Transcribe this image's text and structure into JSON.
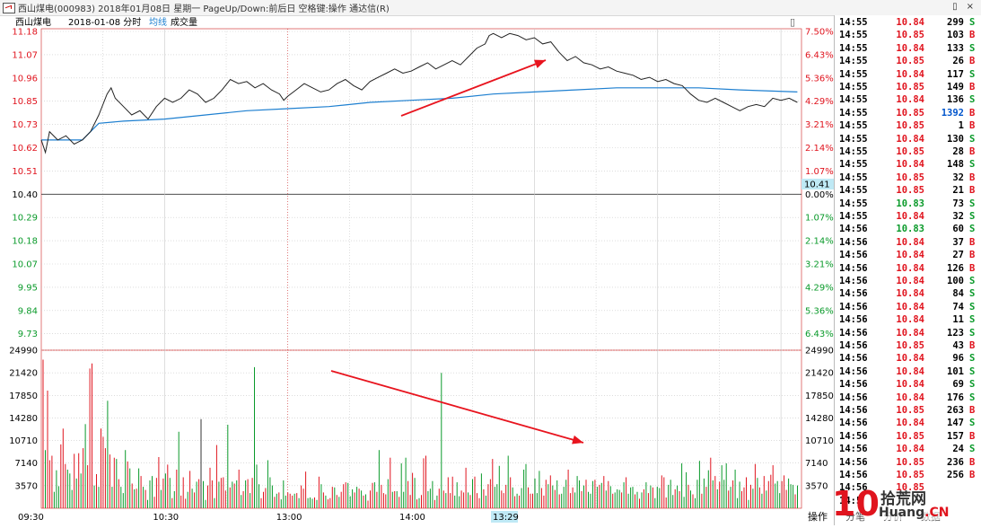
{
  "titlebar": {
    "text": "西山煤电(000983) 2018年01月08日 星期一 PageUp/Down:前后日 空格键:操作 通达信(R)",
    "restore": "▯",
    "close": "×"
  },
  "chart_header": {
    "name": "西山煤电",
    "date_mode": "2018-01-08 分时",
    "avg_label": "均线",
    "vol_label": "成交量",
    "corner_icon": "▯"
  },
  "price_axis": {
    "left_labels": [
      "11.18",
      "11.07",
      "10.96",
      "10.85",
      "10.73",
      "10.62",
      "10.51",
      "10.40",
      "10.29",
      "10.18",
      "10.07",
      "9.95",
      "9.84",
      "9.73"
    ],
    "right_labels": [
      "7.50%",
      "6.43%",
      "5.36%",
      "4.29%",
      "3.21%",
      "2.14%",
      "1.07%",
      "0.00%",
      "1.07%",
      "2.14%",
      "3.21%",
      "4.29%",
      "5.36%",
      "6.43%"
    ],
    "current_tag": "10.41"
  },
  "volume_axis": {
    "labels": [
      "24990",
      "21420",
      "17850",
      "14280",
      "10710",
      "7140",
      "3570"
    ]
  },
  "time_axis": {
    "labels": [
      "09:30",
      "10:30",
      "13:00",
      "14:00"
    ],
    "cursor_label": "13:29"
  },
  "chart_data": {
    "type": "line",
    "ylim": [
      9.62,
      11.18
    ],
    "base_price": 10.4,
    "price_series": [
      [
        0,
        10.66
      ],
      [
        2,
        10.6
      ],
      [
        4,
        10.7
      ],
      [
        8,
        10.66
      ],
      [
        12,
        10.68
      ],
      [
        16,
        10.64
      ],
      [
        20,
        10.66
      ],
      [
        24,
        10.7
      ],
      [
        28,
        10.78
      ],
      [
        32,
        10.88
      ],
      [
        34,
        10.91
      ],
      [
        36,
        10.86
      ],
      [
        40,
        10.82
      ],
      [
        44,
        10.78
      ],
      [
        48,
        10.8
      ],
      [
        52,
        10.76
      ],
      [
        56,
        10.82
      ],
      [
        60,
        10.86
      ],
      [
        64,
        10.84
      ],
      [
        68,
        10.86
      ],
      [
        72,
        10.9
      ],
      [
        76,
        10.88
      ],
      [
        80,
        10.84
      ],
      [
        84,
        10.86
      ],
      [
        88,
        10.9
      ],
      [
        92,
        10.95
      ],
      [
        96,
        10.93
      ],
      [
        100,
        10.94
      ],
      [
        104,
        10.91
      ],
      [
        108,
        10.93
      ],
      [
        112,
        10.9
      ],
      [
        116,
        10.88
      ],
      [
        118,
        10.85
      ],
      [
        120,
        10.87
      ],
      [
        124,
        10.9
      ],
      [
        128,
        10.93
      ],
      [
        132,
        10.91
      ],
      [
        136,
        10.89
      ],
      [
        140,
        10.9
      ],
      [
        144,
        10.93
      ],
      [
        148,
        10.95
      ],
      [
        152,
        10.92
      ],
      [
        156,
        10.9
      ],
      [
        160,
        10.94
      ],
      [
        164,
        10.96
      ],
      [
        168,
        10.98
      ],
      [
        172,
        11.0
      ],
      [
        176,
        10.98
      ],
      [
        180,
        10.99
      ],
      [
        184,
        11.01
      ],
      [
        188,
        11.03
      ],
      [
        192,
        11.0
      ],
      [
        196,
        11.02
      ],
      [
        200,
        11.04
      ],
      [
        204,
        11.02
      ],
      [
        208,
        11.06
      ],
      [
        212,
        11.1
      ],
      [
        216,
        11.12
      ],
      [
        218,
        11.16
      ],
      [
        220,
        11.17
      ],
      [
        224,
        11.15
      ],
      [
        228,
        11.17
      ],
      [
        232,
        11.16
      ],
      [
        236,
        11.14
      ],
      [
        240,
        11.15
      ],
      [
        244,
        11.12
      ],
      [
        248,
        11.13
      ],
      [
        252,
        11.08
      ],
      [
        256,
        11.04
      ],
      [
        260,
        11.06
      ],
      [
        264,
        11.03
      ],
      [
        268,
        11.02
      ],
      [
        272,
        11.0
      ],
      [
        276,
        11.01
      ],
      [
        280,
        10.99
      ],
      [
        284,
        10.98
      ],
      [
        288,
        10.97
      ],
      [
        292,
        10.95
      ],
      [
        296,
        10.96
      ],
      [
        300,
        10.94
      ],
      [
        304,
        10.95
      ],
      [
        308,
        10.93
      ],
      [
        312,
        10.92
      ],
      [
        316,
        10.88
      ],
      [
        320,
        10.85
      ],
      [
        324,
        10.84
      ],
      [
        328,
        10.86
      ],
      [
        332,
        10.84
      ],
      [
        336,
        10.82
      ],
      [
        340,
        10.8
      ],
      [
        344,
        10.82
      ],
      [
        348,
        10.83
      ],
      [
        352,
        10.82
      ],
      [
        356,
        10.86
      ],
      [
        360,
        10.85
      ],
      [
        364,
        10.86
      ],
      [
        368,
        10.84
      ]
    ],
    "avg_series": [
      [
        0,
        10.66
      ],
      [
        20,
        10.66
      ],
      [
        24,
        10.7
      ],
      [
        28,
        10.74
      ],
      [
        40,
        10.75
      ],
      [
        60,
        10.76
      ],
      [
        80,
        10.78
      ],
      [
        100,
        10.8
      ],
      [
        120,
        10.81
      ],
      [
        140,
        10.82
      ],
      [
        160,
        10.84
      ],
      [
        180,
        10.85
      ],
      [
        200,
        10.86
      ],
      [
        220,
        10.88
      ],
      [
        240,
        10.89
      ],
      [
        260,
        10.9
      ],
      [
        280,
        10.91
      ],
      [
        300,
        10.91
      ],
      [
        320,
        10.91
      ],
      [
        340,
        10.9
      ],
      [
        368,
        10.89
      ]
    ],
    "volume_max": 24990,
    "volume_series": [
      23500,
      9200,
      18600,
      7600,
      8300,
      2600,
      6000,
      3500,
      10100,
      12600,
      7000,
      6100,
      5500,
      2900,
      8600,
      4700,
      8700,
      5500,
      9500,
      13300,
      6800,
      22100,
      22900,
      3600,
      5400,
      3400,
      12600,
      11300,
      9500,
      17000,
      8500,
      3400,
      8000,
      7800,
      4600,
      3400,
      2400,
      9200,
      7400,
      6300,
      3900,
      3000,
      3100,
      6300,
      5100,
      3400,
      2900,
      1300,
      4400,
      5100,
      1800,
      4800,
      8100,
      2900,
      4700,
      5500,
      6900,
      4800,
      1600,
      2700,
      6100,
      12100,
      2000,
      4900,
      1500,
      2600,
      5900,
      3100,
      2500,
      4200,
      4600,
      14100,
      4300,
      1300,
      3600,
      6400,
      4400,
      1600,
      10000,
      4200,
      4800,
      4900,
      2800,
      13200,
      3300,
      4200,
      3900,
      4400,
      6100,
      2100,
      2700,
      4400,
      4600,
      2400,
      4800,
      22300,
      6900,
      3800,
      1600,
      2600,
      3200,
      7600,
      4900,
      3600,
      1800,
      2300,
      2500,
      1400,
      4400,
      2000,
      2500,
      2300,
      2000,
      2300,
      2400,
      1600,
      3600,
      3100,
      5800,
      1600,
      1700,
      1500,
      1700,
      1300,
      5000,
      3800,
      2500,
      2000,
      1400,
      1600,
      3400,
      3300,
      2100,
      1800,
      2600,
      3800,
      4100,
      4000,
      1900,
      3000,
      2500,
      3400,
      3100,
      2800,
      2000,
      2200,
      1200,
      2800,
      4000,
      4100,
      2600,
      9200,
      3700,
      2400,
      2200,
      4600,
      8000,
      2600,
      2700,
      2700,
      1800,
      7100,
      2600,
      8000,
      4300,
      2100,
      5600,
      4800,
      1400,
      1600,
      2100,
      7900,
      8300,
      2700,
      3100,
      4300,
      1300,
      2000,
      3100,
      21400,
      2800,
      2400,
      4900,
      2400,
      5000,
      2000,
      4100,
      1900,
      2800,
      2500,
      6400,
      2500,
      2100,
      4600,
      5000,
      2400,
      1600,
      5500,
      3000,
      2000,
      3800,
      4600,
      7800,
      3400,
      3800,
      6700,
      2800,
      2400,
      3700,
      8300,
      4900,
      3300,
      1900,
      2300,
      2000,
      3200,
      6100,
      7000,
      3300,
      2300,
      2300,
      4700,
      2400,
      5900,
      3200,
      2000,
      4500,
      3800,
      5200,
      3600,
      2900,
      4400,
      2200,
      2300,
      3400,
      4500,
      6100,
      2400,
      3300,
      2500,
      5100,
      4400,
      2700,
      3600,
      4500,
      2600,
      2300,
      4300,
      4500,
      3400,
      3700,
      4000,
      5100,
      2800,
      4300,
      3500,
      2300,
      2500,
      3000,
      2900,
      2500,
      4100,
      4900,
      2300,
      3300,
      3400,
      2200,
      2600,
      1500,
      2500,
      3000,
      4100,
      2400,
      3600,
      3300,
      1600,
      3400,
      3200,
      5200,
      4900,
      1700,
      3700,
      4500,
      2100,
      3000,
      3600,
      2700,
      7100,
      1800,
      5700,
      3700,
      2800,
      2200,
      1600,
      4500,
      7500,
      2300,
      4700,
      3400,
      6000,
      8000,
      4400,
      5100,
      3000,
      4200,
      6800,
      4500,
      7100,
      2800,
      3400,
      4400,
      6100,
      1600,
      4200,
      2700,
      3300,
      4900,
      1300,
      3700,
      3100,
      7000,
      4800,
      3300,
      2300,
      5100,
      2800,
      4300,
      5300,
      6800,
      3900,
      4300,
      2400,
      4300,
      5200,
      2900,
      4700,
      3800,
      3700,
      2200,
      3600
    ]
  },
  "annotations": {
    "arrow_color": "#e8141e"
  },
  "tick_list": [
    {
      "time": "14:55",
      "price": "10.84",
      "vol": "299",
      "side": "S"
    },
    {
      "time": "14:55",
      "price": "10.85",
      "vol": "103",
      "side": "B"
    },
    {
      "time": "14:55",
      "price": "10.84",
      "vol": "133",
      "side": "S"
    },
    {
      "time": "14:55",
      "price": "10.85",
      "vol": "26",
      "side": "B"
    },
    {
      "time": "14:55",
      "price": "10.84",
      "vol": "117",
      "side": "S"
    },
    {
      "time": "14:55",
      "price": "10.85",
      "vol": "149",
      "side": "B"
    },
    {
      "time": "14:55",
      "price": "10.84",
      "vol": "136",
      "side": "S"
    },
    {
      "time": "14:55",
      "price": "10.85",
      "vol": "1392",
      "side": "B"
    },
    {
      "time": "14:55",
      "price": "10.85",
      "vol": "1",
      "side": "B"
    },
    {
      "time": "14:55",
      "price": "10.84",
      "vol": "130",
      "side": "S"
    },
    {
      "time": "14:55",
      "price": "10.85",
      "vol": "28",
      "side": "B"
    },
    {
      "time": "14:55",
      "price": "10.84",
      "vol": "148",
      "side": "S"
    },
    {
      "time": "14:55",
      "price": "10.85",
      "vol": "32",
      "side": "B"
    },
    {
      "time": "14:55",
      "price": "10.85",
      "vol": "21",
      "side": "B"
    },
    {
      "time": "14:55",
      "price": "10.83",
      "vol": "73",
      "side": "S"
    },
    {
      "time": "14:55",
      "price": "10.84",
      "vol": "32",
      "side": "S"
    },
    {
      "time": "14:56",
      "price": "10.83",
      "vol": "60",
      "side": "S"
    },
    {
      "time": "14:56",
      "price": "10.84",
      "vol": "37",
      "side": "B"
    },
    {
      "time": "14:56",
      "price": "10.84",
      "vol": "27",
      "side": "B"
    },
    {
      "time": "14:56",
      "price": "10.84",
      "vol": "126",
      "side": "B"
    },
    {
      "time": "14:56",
      "price": "10.84",
      "vol": "100",
      "side": "S"
    },
    {
      "time": "14:56",
      "price": "10.84",
      "vol": "84",
      "side": "S"
    },
    {
      "time": "14:56",
      "price": "10.84",
      "vol": "74",
      "side": "S"
    },
    {
      "time": "14:56",
      "price": "10.84",
      "vol": "11",
      "side": "S"
    },
    {
      "time": "14:56",
      "price": "10.84",
      "vol": "123",
      "side": "S"
    },
    {
      "time": "14:56",
      "price": "10.85",
      "vol": "43",
      "side": "B"
    },
    {
      "time": "14:56",
      "price": "10.84",
      "vol": "96",
      "side": "S"
    },
    {
      "time": "14:56",
      "price": "10.84",
      "vol": "101",
      "side": "S"
    },
    {
      "time": "14:56",
      "price": "10.84",
      "vol": "69",
      "side": "S"
    },
    {
      "time": "14:56",
      "price": "10.84",
      "vol": "176",
      "side": "S"
    },
    {
      "time": "14:56",
      "price": "10.85",
      "vol": "263",
      "side": "B"
    },
    {
      "time": "14:56",
      "price": "10.84",
      "vol": "147",
      "side": "S"
    },
    {
      "time": "14:56",
      "price": "10.85",
      "vol": "157",
      "side": "B"
    },
    {
      "time": "14:56",
      "price": "10.84",
      "vol": "24",
      "side": "S"
    },
    {
      "time": "14:56",
      "price": "10.85",
      "vol": "236",
      "side": "B"
    },
    {
      "time": "14:56",
      "price": "10.85",
      "vol": "256",
      "side": "B"
    },
    {
      "time": "14:56",
      "price": "10.85",
      "vol": "",
      "side": ""
    },
    {
      "time": "14:5",
      "price": "",
      "vol": "",
      "side": ""
    }
  ],
  "bottom_tabs": [
    "操作",
    "分笔",
    "分价",
    "数据"
  ],
  "watermark": {
    "big": "10",
    "cn": "拾荒网",
    "domain_a": "Huang",
    "domain_b": ".CN"
  },
  "colors": {
    "up": "#e0141e",
    "down": "#0a9a2a",
    "avg": "#1d7fd0",
    "price_line": "#222222"
  }
}
